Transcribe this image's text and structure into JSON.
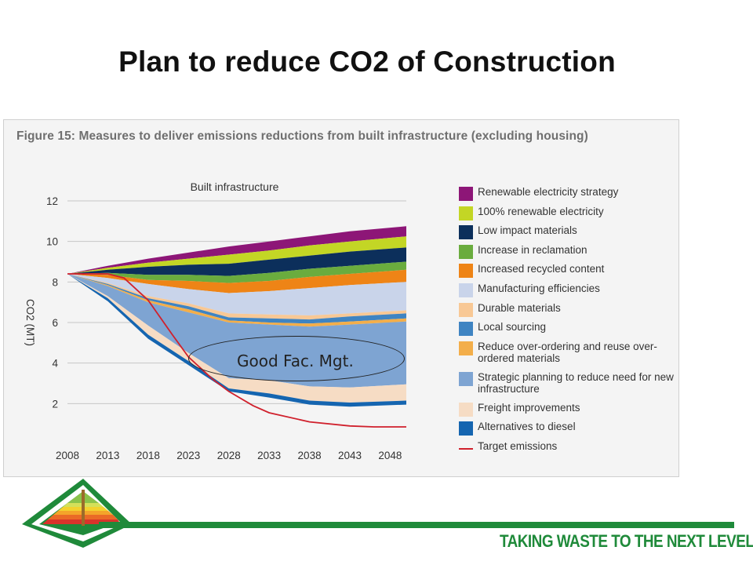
{
  "slide": {
    "title": "Plan to reduce CO2 of Construction",
    "tagline": "TAKING WASTE TO THE NEXT LEVEL"
  },
  "figure": {
    "caption": "Figure 15: Measures to deliver emissions reductions from built infrastructure (excluding housing)"
  },
  "annotation": {
    "text": "Good Fac. Mgt."
  },
  "chart_data": {
    "type": "area",
    "title": "Built infrastructure",
    "ylabel": "CO2 (MT)",
    "xlabel": "",
    "ylim": [
      0,
      12
    ],
    "yticks": [
      "2",
      "4",
      "6",
      "8",
      "10",
      "12"
    ],
    "xticks": [
      "2008",
      "2013",
      "2018",
      "2023",
      "2028",
      "2033",
      "2038",
      "2043",
      "2048"
    ],
    "x": [
      2008,
      2013,
      2018,
      2023,
      2028,
      2033,
      2038,
      2043,
      2050
    ],
    "grid": true,
    "legend_position": "right",
    "stacking": "bottom-up",
    "series": [
      {
        "name": "Alternatives to diesel",
        "color": "#1565b0",
        "values": [
          8.4,
          7.2,
          5.4,
          4.1,
          2.75,
          2.5,
          2.15,
          2.05,
          2.15
        ]
      },
      {
        "name": "Freight improvements",
        "color": "#f6dcc4",
        "values": [
          8.4,
          7.3,
          5.85,
          4.5,
          3.25,
          3.15,
          2.85,
          2.8,
          2.95
        ]
      },
      {
        "name": "Strategic planning to reduce need for new infrastructure",
        "color": "#7ea4d2",
        "values": [
          8.4,
          7.8,
          7.0,
          6.5,
          6.0,
          5.9,
          5.8,
          5.9,
          6.05
        ]
      },
      {
        "name": "Reduce over-ordering and reuse over-ordered materials",
        "color": "#f3ae4a",
        "values": [
          8.4,
          7.85,
          7.1,
          6.65,
          6.1,
          6.0,
          5.95,
          6.05,
          6.2
        ]
      },
      {
        "name": "Local sourcing",
        "color": "#3f84c2",
        "values": [
          8.4,
          7.9,
          7.2,
          6.8,
          6.25,
          6.2,
          6.15,
          6.3,
          6.45
        ]
      },
      {
        "name": "Durable materials",
        "color": "#f8c895",
        "values": [
          8.4,
          7.95,
          7.3,
          6.95,
          6.45,
          6.4,
          6.35,
          6.45,
          6.6
        ]
      },
      {
        "name": "Manufacturing efficiencies",
        "color": "#c9d4ea",
        "values": [
          8.4,
          8.2,
          7.9,
          7.65,
          7.45,
          7.55,
          7.7,
          7.85,
          8.0
        ]
      },
      {
        "name": "Increased recycled content",
        "color": "#ee8416",
        "values": [
          8.4,
          8.35,
          8.1,
          8.05,
          7.95,
          8.05,
          8.25,
          8.4,
          8.6
        ]
      },
      {
        "name": "Increase in reclamation",
        "color": "#6aac3e",
        "values": [
          8.4,
          8.45,
          8.35,
          8.35,
          8.3,
          8.45,
          8.65,
          8.8,
          9.0
        ]
      },
      {
        "name": "Low impact materials",
        "color": "#0c2f5b",
        "values": [
          8.4,
          8.6,
          8.75,
          8.85,
          8.9,
          9.1,
          9.3,
          9.5,
          9.7
        ]
      },
      {
        "name": "100% renewable electricity",
        "color": "#c3d625",
        "values": [
          8.4,
          8.7,
          8.95,
          9.15,
          9.35,
          9.55,
          9.8,
          10.0,
          10.25
        ]
      },
      {
        "name": "Renewable electricity strategy",
        "color": "#8d1677",
        "values": [
          8.4,
          8.8,
          9.15,
          9.45,
          9.75,
          10.0,
          10.25,
          10.5,
          10.75
        ]
      }
    ],
    "target": {
      "name": "Target emissions",
      "color": "#d0202c",
      "x": [
        2008,
        2013,
        2015,
        2018,
        2021,
        2023,
        2026,
        2028,
        2031,
        2033,
        2038,
        2043,
        2046,
        2050
      ],
      "values": [
        8.4,
        8.4,
        8.2,
        7.1,
        5.4,
        4.3,
        3.2,
        2.6,
        1.9,
        1.55,
        1.1,
        0.9,
        0.85,
        0.85
      ]
    }
  }
}
